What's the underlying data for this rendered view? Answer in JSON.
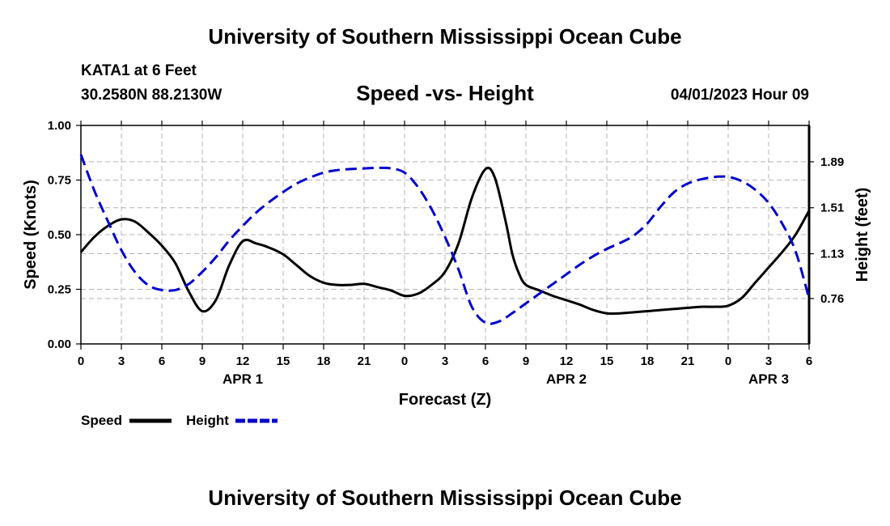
{
  "header": {
    "title": "University of Southern Mississippi Ocean Cube",
    "station": "KATA1 at 6 Feet",
    "coords": "30.2580N  88.2130W",
    "datetime": "04/01/2023 Hour 09"
  },
  "footer": {
    "title": "University of Southern Mississippi Ocean Cube"
  },
  "chart_data": {
    "type": "line",
    "title": "Speed -vs- Height",
    "xlabel": "Forecast (Z)",
    "ylabel_left": "Speed (Knots)",
    "ylabel_right": "Height (feet)",
    "x_range": [
      0,
      54
    ],
    "x_ticks": [
      0,
      3,
      6,
      9,
      12,
      15,
      18,
      21,
      24,
      27,
      30,
      33,
      36,
      39,
      42,
      45,
      48,
      51,
      54
    ],
    "x_tick_labels": [
      "0",
      "3",
      "6",
      "9",
      "12",
      "15",
      "18",
      "21",
      "0",
      "3",
      "6",
      "9",
      "12",
      "15",
      "18",
      "21",
      "0",
      "3",
      "6"
    ],
    "date_labels": [
      {
        "x": 12,
        "text": "APR 1"
      },
      {
        "x": 36,
        "text": "APR 2"
      },
      {
        "x": 51,
        "text": "APR 3"
      }
    ],
    "left_axis": {
      "range": [
        0,
        1
      ],
      "ticks": [
        0,
        0.25,
        0.5,
        0.75,
        1
      ],
      "tick_labels": [
        "0.00",
        "0.25",
        "0.50",
        "0.75",
        "1.00"
      ]
    },
    "right_axis": {
      "range": [
        0.385,
        2.19
      ],
      "ticks": [
        0.76,
        1.13,
        1.51,
        1.89
      ],
      "tick_labels": [
        "0.76",
        "1.13",
        "1.51",
        "1.89"
      ]
    },
    "grid": true,
    "legend": [
      "Speed",
      "Height"
    ],
    "series": [
      {
        "name": "Speed",
        "axis": "left",
        "color": "#000000",
        "dash": "solid",
        "points": [
          [
            0,
            0.42
          ],
          [
            1,
            0.49
          ],
          [
            2,
            0.54
          ],
          [
            3,
            0.57
          ],
          [
            4,
            0.56
          ],
          [
            5,
            0.51
          ],
          [
            6,
            0.45
          ],
          [
            7,
            0.37
          ],
          [
            8,
            0.24
          ],
          [
            9,
            0.15
          ],
          [
            10,
            0.2
          ],
          [
            11,
            0.36
          ],
          [
            12,
            0.47
          ],
          [
            13,
            0.46
          ],
          [
            14,
            0.44
          ],
          [
            15,
            0.41
          ],
          [
            16,
            0.36
          ],
          [
            17,
            0.31
          ],
          [
            18,
            0.28
          ],
          [
            19,
            0.27
          ],
          [
            20,
            0.27
          ],
          [
            21,
            0.275
          ],
          [
            22,
            0.26
          ],
          [
            23,
            0.245
          ],
          [
            24,
            0.22
          ],
          [
            25,
            0.23
          ],
          [
            26,
            0.27
          ],
          [
            27,
            0.33
          ],
          [
            28,
            0.46
          ],
          [
            29,
            0.67
          ],
          [
            30,
            0.8
          ],
          [
            30.7,
            0.76
          ],
          [
            31.5,
            0.56
          ],
          [
            32,
            0.41
          ],
          [
            32.5,
            0.32
          ],
          [
            33,
            0.27
          ],
          [
            34,
            0.245
          ],
          [
            35,
            0.22
          ],
          [
            36,
            0.2
          ],
          [
            37,
            0.18
          ],
          [
            38,
            0.155
          ],
          [
            39,
            0.14
          ],
          [
            40,
            0.14
          ],
          [
            41,
            0.145
          ],
          [
            42,
            0.15
          ],
          [
            43,
            0.155
          ],
          [
            44,
            0.16
          ],
          [
            45,
            0.165
          ],
          [
            46,
            0.17
          ],
          [
            47,
            0.17
          ],
          [
            48,
            0.175
          ],
          [
            49,
            0.21
          ],
          [
            50,
            0.28
          ],
          [
            51,
            0.35
          ],
          [
            52,
            0.42
          ],
          [
            53,
            0.5
          ],
          [
            54,
            0.61
          ]
        ]
      },
      {
        "name": "Height",
        "axis": "right",
        "color": "#0000cc",
        "dash": "dashed",
        "points": [
          [
            0,
            1.95
          ],
          [
            1,
            1.65
          ],
          [
            2,
            1.4
          ],
          [
            3,
            1.16
          ],
          [
            4,
            0.98
          ],
          [
            5,
            0.87
          ],
          [
            6,
            0.83
          ],
          [
            7,
            0.83
          ],
          [
            8,
            0.88
          ],
          [
            9,
            0.98
          ],
          [
            10,
            1.1
          ],
          [
            11,
            1.24
          ],
          [
            12,
            1.36
          ],
          [
            13,
            1.47
          ],
          [
            14,
            1.56
          ],
          [
            15,
            1.64
          ],
          [
            16,
            1.71
          ],
          [
            17,
            1.76
          ],
          [
            18,
            1.8
          ],
          [
            19,
            1.82
          ],
          [
            20,
            1.83
          ],
          [
            21,
            1.835
          ],
          [
            22,
            1.84
          ],
          [
            23,
            1.835
          ],
          [
            24,
            1.8
          ],
          [
            25,
            1.68
          ],
          [
            26,
            1.5
          ],
          [
            27,
            1.27
          ],
          [
            28,
            1.0
          ],
          [
            29,
            0.69
          ],
          [
            30,
            0.56
          ],
          [
            31,
            0.57
          ],
          [
            32,
            0.64
          ],
          [
            33,
            0.72
          ],
          [
            34,
            0.8
          ],
          [
            35,
            0.88
          ],
          [
            36,
            0.96
          ],
          [
            37,
            1.04
          ],
          [
            38,
            1.11
          ],
          [
            39,
            1.17
          ],
          [
            40,
            1.22
          ],
          [
            41,
            1.28
          ],
          [
            42,
            1.38
          ],
          [
            43,
            1.52
          ],
          [
            44,
            1.64
          ],
          [
            45,
            1.71
          ],
          [
            46,
            1.745
          ],
          [
            47,
            1.765
          ],
          [
            48,
            1.765
          ],
          [
            49,
            1.73
          ],
          [
            50,
            1.66
          ],
          [
            51,
            1.55
          ],
          [
            52,
            1.38
          ],
          [
            53,
            1.15
          ],
          [
            54,
            0.76
          ]
        ]
      }
    ]
  }
}
